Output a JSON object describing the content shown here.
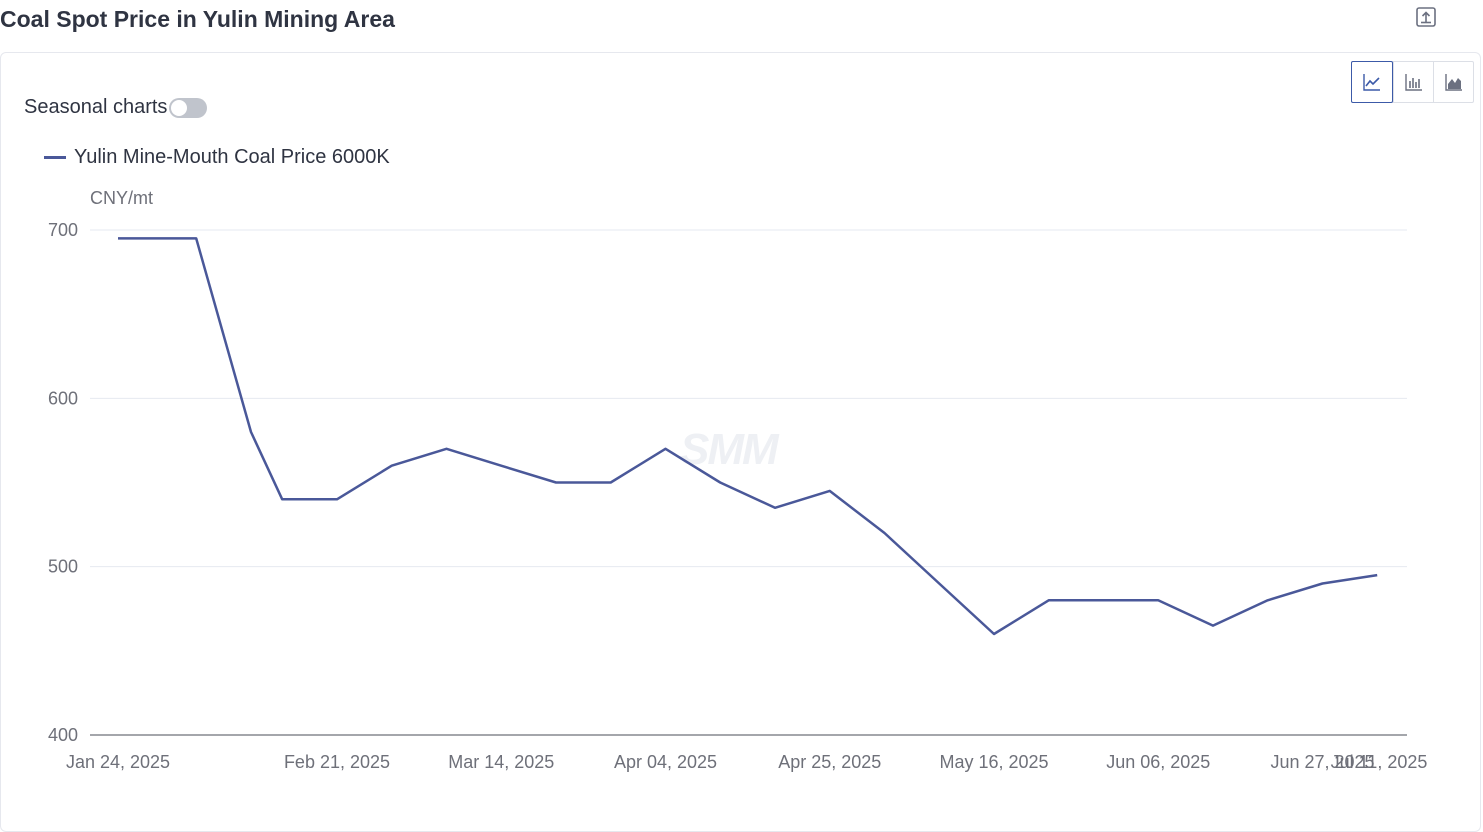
{
  "title": "Coal Spot Price in Yulin Mining Area",
  "toolbar": {
    "export_icon": "export-icon",
    "chart_types": [
      {
        "name": "line",
        "icon": "line-chart-icon",
        "active": true
      },
      {
        "name": "bar",
        "icon": "bar-chart-icon",
        "active": false
      },
      {
        "name": "area",
        "icon": "area-chart-icon",
        "active": false
      }
    ]
  },
  "seasonal": {
    "label": "Seasonal charts",
    "enabled": false
  },
  "watermark": "SMM",
  "colors": {
    "series": "#4a5899",
    "axis": "#6e7079",
    "grid": "#e6e9f0",
    "active": "#3c5aa8"
  },
  "chart_data": {
    "type": "line",
    "unit": "CNY/mt",
    "series": [
      {
        "name": "Yulin Mine-Mouth Coal Price 6000K",
        "color": "#4a5899",
        "points": [
          {
            "x": "2025-01-24",
            "y": 695
          },
          {
            "x": "2025-02-03",
            "y": 695
          },
          {
            "x": "2025-02-10",
            "y": 580
          },
          {
            "x": "2025-02-14",
            "y": 540
          },
          {
            "x": "2025-02-21",
            "y": 540
          },
          {
            "x": "2025-02-28",
            "y": 560
          },
          {
            "x": "2025-03-07",
            "y": 570
          },
          {
            "x": "2025-03-14",
            "y": 560
          },
          {
            "x": "2025-03-21",
            "y": 550
          },
          {
            "x": "2025-03-28",
            "y": 550
          },
          {
            "x": "2025-04-04",
            "y": 570
          },
          {
            "x": "2025-04-11",
            "y": 550
          },
          {
            "x": "2025-04-18",
            "y": 535
          },
          {
            "x": "2025-04-25",
            "y": 545
          },
          {
            "x": "2025-05-02",
            "y": 520
          },
          {
            "x": "2025-05-09",
            "y": 490
          },
          {
            "x": "2025-05-16",
            "y": 460
          },
          {
            "x": "2025-05-23",
            "y": 480
          },
          {
            "x": "2025-05-30",
            "y": 480
          },
          {
            "x": "2025-06-06",
            "y": 480
          },
          {
            "x": "2025-06-13",
            "y": 465
          },
          {
            "x": "2025-06-20",
            "y": 480
          },
          {
            "x": "2025-06-27",
            "y": 490
          },
          {
            "x": "2025-07-04",
            "y": 495
          }
        ]
      }
    ],
    "y_ticks": [
      400,
      500,
      600,
      700
    ],
    "ylim": [
      400,
      700
    ],
    "x_ticks": [
      "Jan 24, 2025",
      "Feb 21, 2025",
      "Mar 14, 2025",
      "Apr 04, 2025",
      "Apr 25, 2025",
      "May 16, 2025",
      "Jun 06, 2025",
      "Jun 27, 2025",
      "Jul 11, 2025"
    ],
    "grid": true,
    "legend_position": "top-left"
  }
}
